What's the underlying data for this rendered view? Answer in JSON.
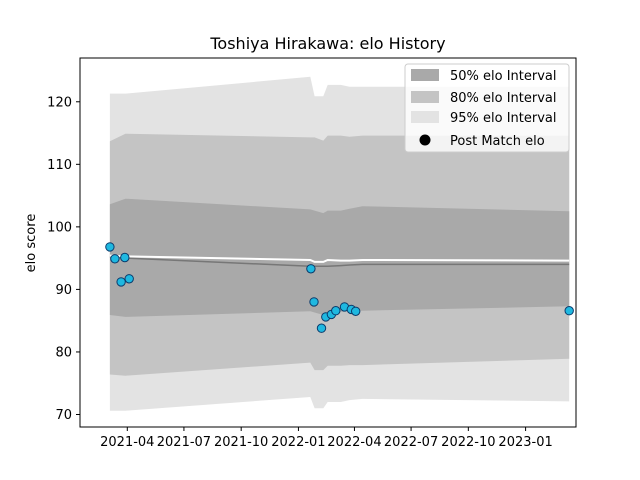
{
  "chart_data": {
    "type": "scatter",
    "title": "Toshiya Hirakawa: elo History",
    "xlabel": "",
    "ylabel": "elo score",
    "xlim": [
      "2021-01-15",
      "2023-03-23"
    ],
    "ylim": [
      68,
      127
    ],
    "x_ticks": [
      "2021-04",
      "2021-07",
      "2021-10",
      "2022-01",
      "2022-04",
      "2022-07",
      "2022-10",
      "2023-01"
    ],
    "y_ticks": [
      70,
      80,
      90,
      100,
      110,
      120
    ],
    "grid": false,
    "legend_position": "top-right",
    "legend": [
      "50% elo Interval",
      "80% elo Interval",
      "95% elo Interval",
      "Post Match elo"
    ],
    "colors": {
      "band_50": "#a9a9a9",
      "band_80": "#c4c4c4",
      "band_95": "#e3e3e3",
      "mean_line": "#777777",
      "highlight_line": "#ffffff",
      "points_fill": "#1fb8e0",
      "points_edge": "#0a3a6b"
    },
    "band_dates": [
      "2021-03-04",
      "2021-03-29",
      "2022-01-20",
      "2022-01-27",
      "2022-02-10",
      "2022-02-17",
      "2022-03-10",
      "2022-03-24",
      "2022-04-14",
      "2023-03-12"
    ],
    "bands": {
      "p95_upper": [
        121.3,
        121.3,
        124.0,
        120.9,
        120.9,
        122.7,
        122.7,
        122.4,
        122.4,
        122.4
      ],
      "p80_upper": [
        113.7,
        114.9,
        114.3,
        114.3,
        113.8,
        114.6,
        114.6,
        114.4,
        114.6,
        114.6
      ],
      "p50_upper": [
        103.6,
        104.5,
        102.8,
        102.6,
        102.2,
        102.6,
        102.6,
        102.9,
        103.3,
        102.5
      ],
      "mean": [
        95.2,
        95.0,
        93.7,
        93.7,
        93.7,
        93.7,
        93.8,
        93.9,
        94.0,
        94.0
      ],
      "p50_lower": [
        85.9,
        85.6,
        86.5,
        86.3,
        85.9,
        86.2,
        86.4,
        86.5,
        86.6,
        87.3
      ],
      "p80_lower": [
        76.4,
        76.2,
        78.3,
        77.1,
        77.1,
        77.8,
        77.8,
        77.9,
        77.9,
        78.9
      ],
      "p95_lower": [
        70.6,
        70.6,
        72.8,
        71.0,
        71.0,
        72.0,
        72.0,
        72.3,
        72.5,
        72.1
      ]
    },
    "highlight_line": {
      "dates": [
        "2021-03-04",
        "2021-03-29",
        "2022-01-20",
        "2022-01-27",
        "2022-02-10",
        "2022-02-17",
        "2022-03-10",
        "2022-03-24",
        "2022-04-14",
        "2023-03-12"
      ],
      "values": [
        95.4,
        95.3,
        94.7,
        94.4,
        94.4,
        94.7,
        94.6,
        94.6,
        94.7,
        94.6
      ]
    },
    "series": [
      {
        "name": "Post Match elo",
        "points": [
          {
            "x": "2021-03-04",
            "y": 96.8
          },
          {
            "x": "2021-03-12",
            "y": 94.9
          },
          {
            "x": "2021-03-22",
            "y": 91.2
          },
          {
            "x": "2021-03-28",
            "y": 95.1
          },
          {
            "x": "2021-04-04",
            "y": 91.7
          },
          {
            "x": "2022-01-21",
            "y": 93.3
          },
          {
            "x": "2022-01-26",
            "y": 88.0
          },
          {
            "x": "2022-02-07",
            "y": 83.8
          },
          {
            "x": "2022-02-14",
            "y": 85.6
          },
          {
            "x": "2022-02-23",
            "y": 86.0
          },
          {
            "x": "2022-03-02",
            "y": 86.6
          },
          {
            "x": "2022-03-16",
            "y": 87.2
          },
          {
            "x": "2022-03-27",
            "y": 86.8
          },
          {
            "x": "2022-04-03",
            "y": 86.5
          },
          {
            "x": "2023-03-12",
            "y": 86.6
          }
        ]
      }
    ]
  }
}
